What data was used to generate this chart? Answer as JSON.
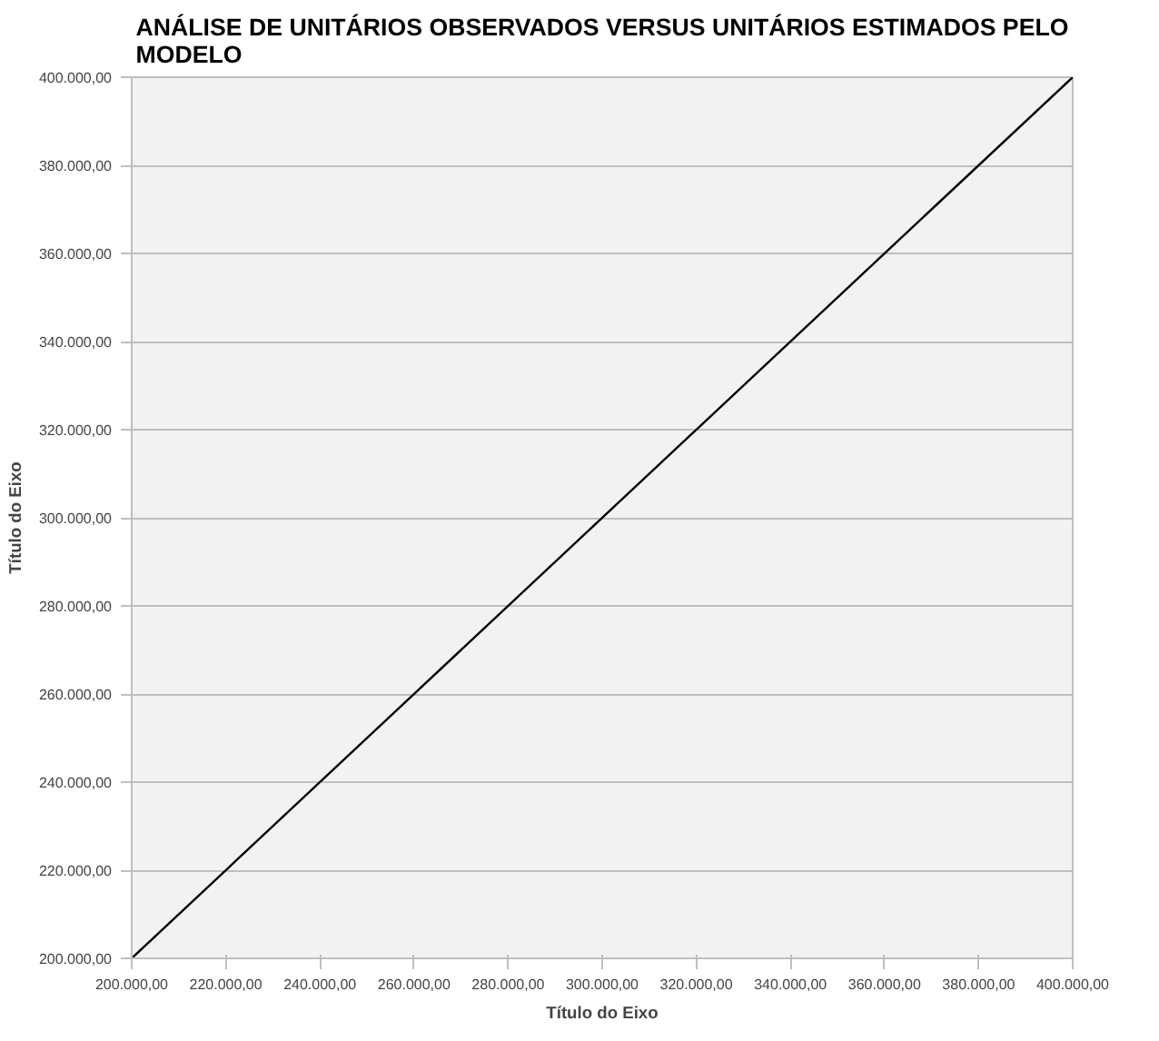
{
  "chart_data": {
    "type": "line",
    "title": "ANÁLISE DE UNITÁRIOS OBSERVADOS VERSUS UNITÁRIOS ESTIMADOS PELO MODELO",
    "xlabel": "Título do Eixo",
    "ylabel": "Título do Eixo",
    "x": [
      200000,
      400000
    ],
    "series": [
      {
        "color": "#000000",
        "values": [
          200000,
          400000
        ]
      }
    ],
    "xlim": [
      200000,
      400000
    ],
    "ylim": [
      200000,
      400000
    ],
    "xticks": [
      {
        "value": 200000,
        "label": "200.000,00"
      },
      {
        "value": 220000,
        "label": "220.000,00"
      },
      {
        "value": 240000,
        "label": "240.000,00"
      },
      {
        "value": 260000,
        "label": "260.000,00"
      },
      {
        "value": 280000,
        "label": "280.000,00"
      },
      {
        "value": 300000,
        "label": "300.000,00"
      },
      {
        "value": 320000,
        "label": "320.000,00"
      },
      {
        "value": 340000,
        "label": "340.000,00"
      },
      {
        "value": 360000,
        "label": "360.000,00"
      },
      {
        "value": 380000,
        "label": "380.000,00"
      },
      {
        "value": 400000,
        "label": "400.000,00"
      }
    ],
    "yticks": [
      {
        "value": 200000,
        "label": "200.000,00"
      },
      {
        "value": 220000,
        "label": "220.000,00"
      },
      {
        "value": 240000,
        "label": "240.000,00"
      },
      {
        "value": 260000,
        "label": "260.000,00"
      },
      {
        "value": 280000,
        "label": "280.000,00"
      },
      {
        "value": 300000,
        "label": "300.000,00"
      },
      {
        "value": 320000,
        "label": "320.000,00"
      },
      {
        "value": 340000,
        "label": "340.000,00"
      },
      {
        "value": 360000,
        "label": "360.000,00"
      },
      {
        "value": 380000,
        "label": "380.000,00"
      },
      {
        "value": 400000,
        "label": "400.000,00"
      }
    ],
    "grid": "y",
    "marker": "none",
    "line_style": "solid"
  }
}
